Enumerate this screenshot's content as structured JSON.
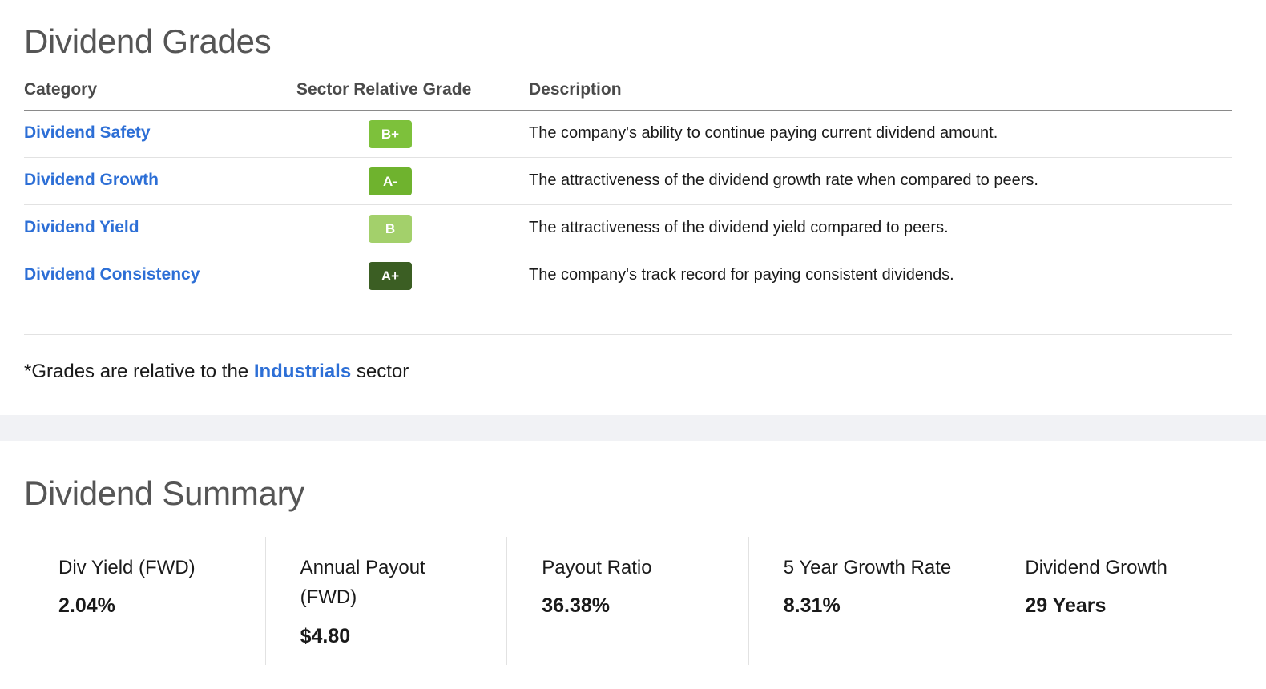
{
  "grades_section": {
    "title": "Dividend Grades",
    "headers": {
      "category": "Category",
      "grade": "Sector Relative Grade",
      "description": "Description"
    },
    "rows": [
      {
        "category": "Dividend Safety",
        "grade": "B+",
        "grade_color": "#7dc13b",
        "description": "The company's ability to continue paying current dividend amount."
      },
      {
        "category": "Dividend Growth",
        "grade": "A-",
        "grade_color": "#6fb32e",
        "description": "The attractiveness of the dividend growth rate when compared to peers."
      },
      {
        "category": "Dividend Yield",
        "grade": "B",
        "grade_color": "#a3d06b",
        "description": "The attractiveness of the dividend yield compared to peers."
      },
      {
        "category": "Dividend Consistency",
        "grade": "A+",
        "grade_color": "#3b5e23",
        "description": "The company's track record for paying consistent dividends."
      }
    ],
    "footnote": {
      "prefix": "*Grades are relative to the ",
      "sector": "Industrials",
      "suffix": " sector"
    }
  },
  "summary_section": {
    "title": "Dividend Summary",
    "cards": [
      {
        "label": "Div Yield (FWD)",
        "value": "2.04%"
      },
      {
        "label": "Annual Payout (FWD)",
        "value": "$4.80"
      },
      {
        "label": "Payout Ratio",
        "value": "36.38%"
      },
      {
        "label": "5 Year Growth Rate",
        "value": "8.31%"
      },
      {
        "label": "Dividend Growth",
        "value": "29 Years"
      }
    ]
  },
  "colors": {
    "link": "#2d6fd6",
    "heading": "#555555",
    "band": "#f1f2f5"
  }
}
